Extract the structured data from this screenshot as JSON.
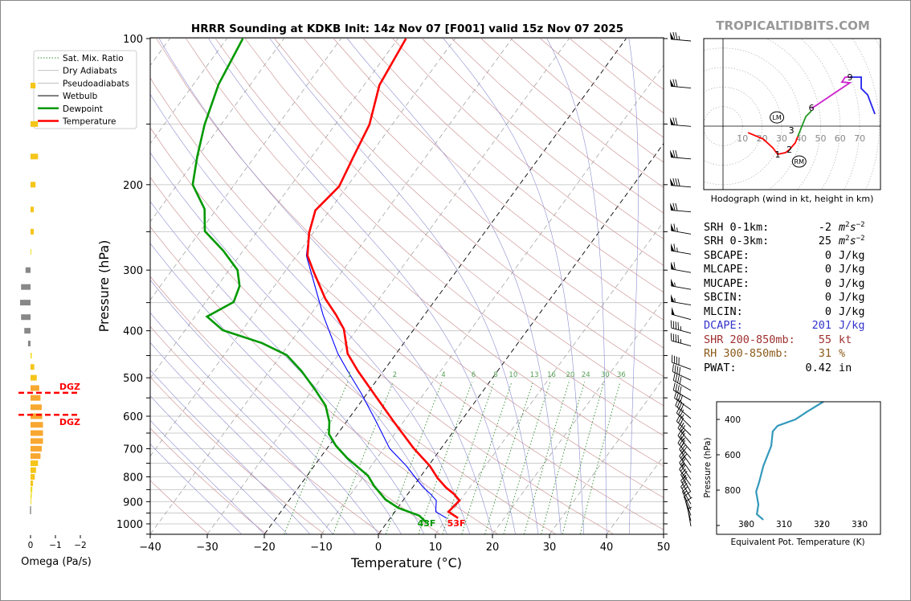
{
  "title": "HRRR Sounding at KDKB Init: 14z Nov 07 [F001] valid 15z Nov 07 2025",
  "watermark": "TROPICALTIDBITS.COM",
  "colors": {
    "temperature": "#ff0000",
    "dewpoint": "#009900",
    "wetbulb": "#0000ff",
    "dry_adiabat": "#c98a8a",
    "moist_adiabat": "#8c8cd0",
    "mixing_ratio": "#2e8b2e",
    "isotherm": "#999999",
    "theta_e": "#3399bb",
    "dcape": "#3333cc",
    "shr": "#a03030",
    "rh": "#8b5a1a"
  },
  "legend": {
    "items": [
      "Sat. Mix. Ratio",
      "Dry Adiabats",
      "Pseudoadiabats",
      "Wetbulb",
      "Dewpoint",
      "Temperature"
    ]
  },
  "chart_data": [
    {
      "type": "line",
      "name": "skew-t",
      "xlabel": "Temperature (°C)",
      "ylabel": "Pressure (hPa)",
      "xlim": [
        -40,
        50
      ],
      "ylim": [
        1050,
        100
      ],
      "x_ticks": [
        "−40",
        "−30",
        "−20",
        "−10",
        "0",
        "10",
        "20",
        "30",
        "40",
        "50"
      ],
      "x_tick_values": [
        -40,
        -30,
        -20,
        -10,
        0,
        10,
        20,
        30,
        40,
        50
      ],
      "y_ticks": [
        "100",
        "200",
        "300",
        "400",
        "500",
        "600",
        "700",
        "800",
        "900",
        "1000"
      ],
      "y_tick_values": [
        100,
        200,
        300,
        400,
        500,
        600,
        700,
        800,
        900,
        1000
      ],
      "mixing_ratio_labels": [
        "1",
        "2",
        "4",
        "6",
        "8",
        "10",
        "13",
        "16",
        "20",
        "24",
        "30",
        "36"
      ],
      "mixing_ratio_values": [
        1,
        2,
        4,
        6,
        8,
        10,
        13,
        16,
        20,
        24,
        30,
        36
      ],
      "surface_temp_label": "53F",
      "surface_dewpoint_label": "43F",
      "temperature": [
        [
          100,
          -58.6
        ],
        [
          124.7,
          -57.3
        ],
        [
          150.4,
          -54
        ],
        [
          175,
          -52.7
        ],
        [
          201.7,
          -51.4
        ],
        [
          226,
          -52.5
        ],
        [
          251.6,
          -50.7
        ],
        [
          280,
          -48.1
        ],
        [
          302,
          -45
        ],
        [
          344,
          -39.4
        ],
        [
          371,
          -35.5
        ],
        [
          397,
          -32.3
        ],
        [
          446,
          -28.5
        ],
        [
          484,
          -24.5
        ],
        [
          539,
          -18.8
        ],
        [
          616,
          -11.7
        ],
        [
          699,
          -4.8
        ],
        [
          760,
          0.3
        ],
        [
          805,
          3.2
        ],
        [
          842,
          5.9
        ],
        [
          868,
          8.1
        ],
        [
          895,
          9.9
        ],
        [
          944,
          9.4
        ],
        [
          973,
          11.9
        ]
      ],
      "dewpoint": [
        [
          100,
          -87.2
        ],
        [
          124.2,
          -85.6
        ],
        [
          150.4,
          -82.9
        ],
        [
          175,
          -80.1
        ],
        [
          200,
          -77.3
        ],
        [
          224.5,
          -72.1
        ],
        [
          249.5,
          -69.2
        ],
        [
          273.5,
          -63.5
        ],
        [
          300,
          -58.5
        ],
        [
          323.6,
          -56.1
        ],
        [
          349,
          -55.1
        ],
        [
          374,
          -57.9
        ],
        [
          399,
          -53.4
        ],
        [
          424,
          -44.9
        ],
        [
          449,
          -39
        ],
        [
          484,
          -34.4
        ],
        [
          529,
          -29.6
        ],
        [
          571,
          -25.7
        ],
        [
          616,
          -23
        ],
        [
          653,
          -21.5
        ],
        [
          690,
          -18.8
        ],
        [
          731,
          -15.3
        ],
        [
          796,
          -9.3
        ],
        [
          836,
          -6.9
        ],
        [
          891,
          -3.2
        ],
        [
          927,
          0.1
        ],
        [
          962,
          4.8
        ],
        [
          992,
          6.8
        ]
      ],
      "winds_kt": [
        [
          100,
          275,
          75
        ],
        [
          125,
          275,
          70
        ],
        [
          150,
          275,
          70
        ],
        [
          175,
          275,
          70
        ],
        [
          200,
          275,
          80
        ],
        [
          225,
          275,
          70
        ],
        [
          250,
          280,
          65
        ],
        [
          275,
          280,
          65
        ],
        [
          300,
          280,
          60
        ],
        [
          325,
          280,
          55
        ],
        [
          350,
          280,
          55
        ],
        [
          375,
          285,
          50
        ],
        [
          400,
          285,
          45
        ],
        [
          425,
          285,
          45
        ],
        [
          475,
          290,
          40
        ],
        [
          500,
          295,
          40
        ],
        [
          525,
          300,
          40
        ],
        [
          550,
          300,
          40
        ],
        [
          575,
          305,
          40
        ],
        [
          600,
          310,
          40
        ],
        [
          625,
          315,
          35
        ],
        [
          650,
          315,
          35
        ],
        [
          675,
          320,
          35
        ],
        [
          700,
          320,
          35
        ],
        [
          725,
          320,
          30
        ],
        [
          750,
          325,
          30
        ],
        [
          775,
          325,
          30
        ],
        [
          800,
          325,
          25
        ],
        [
          825,
          325,
          25
        ],
        [
          850,
          330,
          25
        ],
        [
          875,
          330,
          20
        ],
        [
          900,
          330,
          20
        ],
        [
          925,
          335,
          15
        ],
        [
          950,
          340,
          10
        ],
        [
          975,
          345,
          10
        ],
        [
          1000,
          350,
          5
        ]
      ]
    },
    {
      "type": "bar",
      "name": "omega",
      "xlabel": "Omega (Pa/s)",
      "x_ticks": [
        "0",
        "−1",
        "−2"
      ],
      "x_tick_values": [
        0,
        -1,
        -2
      ],
      "dgz_label": "DGZ",
      "dgz_pressures": [
        537,
        596
      ],
      "pressures": [
        125,
        150,
        175,
        200,
        225,
        250,
        275,
        300,
        325,
        350,
        375,
        400,
        425,
        450,
        475,
        500,
        525,
        550,
        575,
        600,
        625,
        650,
        675,
        700,
        725,
        750,
        775,
        800,
        825,
        850,
        875,
        900,
        925
      ],
      "values": [
        -0.2,
        -0.3,
        -0.3,
        -0.2,
        -0.13,
        -0.13,
        -0.03,
        0.2,
        0.38,
        0.42,
        0.38,
        0.25,
        0.1,
        -0.05,
        -0.15,
        -0.25,
        -0.35,
        -0.4,
        -0.45,
        -0.47,
        -0.5,
        -0.5,
        -0.5,
        -0.45,
        -0.4,
        -0.3,
        -0.22,
        -0.17,
        -0.1,
        -0.07,
        -0.05,
        -0.03,
        -0.01
      ]
    },
    {
      "type": "line",
      "name": "hodograph",
      "caption": "Hodograph (wind in kt, height in km)",
      "ring_labels": [
        "10",
        "20",
        "30",
        "40",
        "50",
        "60",
        "70"
      ],
      "ring_values": [
        10,
        20,
        30,
        40,
        50,
        60,
        70
      ],
      "segments": [
        {
          "color": "#ff0000",
          "uv": [
            [
              12.8,
              -3.3
            ],
            [
              20.6,
              -6.6
            ],
            [
              25.5,
              -11.1
            ],
            [
              28,
              -14.4
            ],
            [
              32,
              -13.6
            ],
            [
              34,
              -12
            ],
            [
              37,
              -8.6
            ],
            [
              38.3,
              -5.3
            ]
          ]
        },
        {
          "color": "#229922",
          "uv": [
            [
              38.3,
              -5.3
            ],
            [
              42.4,
              4.9
            ],
            [
              45.3,
              7.8
            ]
          ]
        },
        {
          "color": "#cc22cc",
          "uv": [
            [
              45.3,
              9
            ],
            [
              65,
              22.2
            ],
            [
              60.9,
              22.6
            ],
            [
              62.6,
              25.1
            ],
            [
              65,
              25.1
            ]
          ]
        },
        {
          "color": "#2222ee",
          "uv": [
            [
              65,
              25.1
            ],
            [
              70.8,
              25.1
            ],
            [
              70.8,
              19.3
            ],
            [
              74.1,
              16
            ],
            [
              77.8,
              6.2
            ]
          ]
        }
      ],
      "height_labels": [
        {
          "text": "1",
          "uv": [
            28,
            -14.4
          ]
        },
        {
          "text": "2",
          "uv": [
            34,
            -12
          ]
        },
        {
          "text": "3",
          "uv": [
            38.3,
            -5.3
          ]
        },
        {
          "text": "6",
          "uv": [
            45.3,
            9.5
          ]
        },
        {
          "text": "9",
          "uv": [
            65,
            25.1
          ]
        }
      ],
      "storm_motion": [
        {
          "text": "LM",
          "uv": [
            27.6,
            4.5
          ]
        },
        {
          "text": "RM",
          "uv": [
            39,
            -18.1
          ]
        }
      ]
    },
    {
      "type": "line",
      "name": "theta-e",
      "xlabel": "Equivalent Pot. Temperature (K)",
      "ylabel": "Pressure (hPa)",
      "xlim": [
        292,
        335
      ],
      "ylim": [
        1050,
        300
      ],
      "x_ticks": [
        "300",
        "310",
        "320",
        "330"
      ],
      "x_tick_values": [
        300,
        310,
        320,
        330
      ],
      "y_ticks": [
        "400",
        "600",
        "800"
      ],
      "y_tick_values": [
        400,
        600,
        800
      ],
      "points": [
        [
          320.4,
          300
        ],
        [
          316.2,
          355
        ],
        [
          313,
          400
        ],
        [
          308.3,
          436
        ],
        [
          307,
          468
        ],
        [
          306.6,
          550
        ],
        [
          304.5,
          664
        ],
        [
          303.4,
          755
        ],
        [
          302.6,
          809
        ],
        [
          303.2,
          882
        ],
        [
          302.8,
          936
        ],
        [
          304.5,
          968
        ]
      ]
    }
  ],
  "stats": [
    {
      "label": "SRH 0-1km:",
      "value": "-2",
      "unit": "m",
      "sup": "2",
      "unit2": "s",
      "sup2": "−2",
      "color": "#000000"
    },
    {
      "label": "SRH 0-3km:",
      "value": "25",
      "unit": "m",
      "sup": "2",
      "unit2": "s",
      "sup2": "−2",
      "color": "#000000"
    },
    {
      "label": "SBCAPE:",
      "value": "0",
      "unit": "J/kg",
      "color": "#000000"
    },
    {
      "label": "MLCAPE:",
      "value": "0",
      "unit": "J/kg",
      "color": "#000000"
    },
    {
      "label": "MUCAPE:",
      "value": "0",
      "unit": "J/kg",
      "color": "#000000"
    },
    {
      "label": "SBCIN:",
      "value": "0",
      "unit": "J/kg",
      "color": "#000000"
    },
    {
      "label": "MLCIN:",
      "value": "0",
      "unit": "J/kg",
      "color": "#000000"
    },
    {
      "label": "DCAPE:",
      "value": "201",
      "unit": "J/kg",
      "color": "#3333cc"
    },
    {
      "label": "SHR 200-850mb:",
      "value": "55",
      "unit": "kt",
      "color": "#a03030"
    },
    {
      "label": "RH 300-850mb:",
      "value": "31",
      "unit": "%",
      "color": "#8b5a1a"
    },
    {
      "label": "PWAT:",
      "value": "0.42",
      "unit": "in",
      "color": "#000000"
    }
  ]
}
